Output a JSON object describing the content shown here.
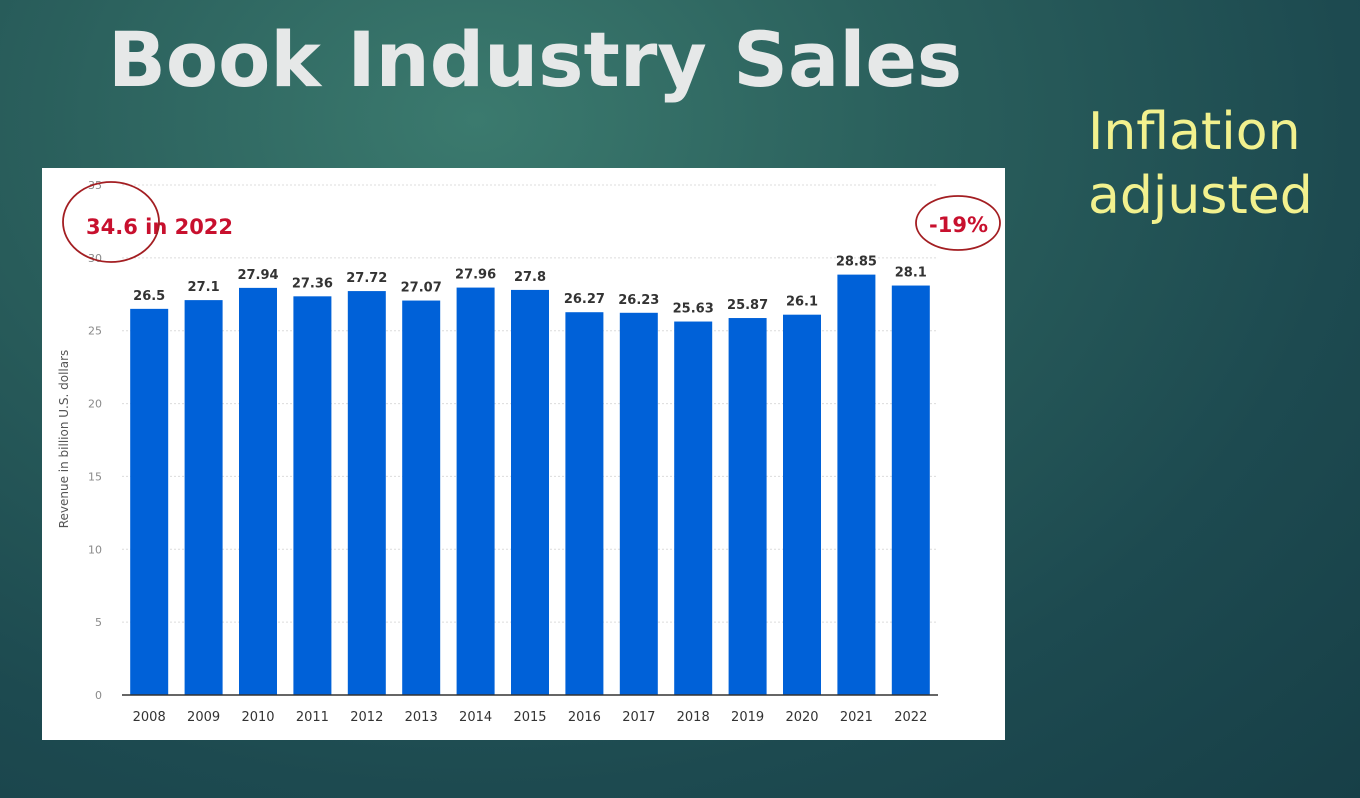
{
  "slide": {
    "title": "Book Industry Sales",
    "note_line1": "Inflation",
    "note_line2": "adjusted"
  },
  "colors": {
    "bar": "#0061d8",
    "annotation": "#c8102e",
    "note_text": "#f2f18e",
    "title_text": "#e6e8e8"
  },
  "annotations": {
    "left": "34.6 in 2022",
    "right": "-19%"
  },
  "chart_data": {
    "type": "bar",
    "categories": [
      "2008",
      "2009",
      "2010",
      "2011",
      "2012",
      "2013",
      "2014",
      "2015",
      "2016",
      "2017",
      "2018",
      "2019",
      "2020",
      "2021",
      "2022"
    ],
    "values": [
      26.5,
      27.1,
      27.94,
      27.36,
      27.72,
      27.07,
      27.96,
      27.8,
      26.27,
      26.23,
      25.63,
      25.87,
      26.1,
      28.85,
      28.1
    ],
    "value_labels": [
      "26.5",
      "27.1",
      "27.94",
      "27.36",
      "27.72",
      "27.07",
      "27.96",
      "27.8",
      "26.27",
      "26.23",
      "25.63",
      "25.87",
      "26.1",
      "28.85",
      "28.1"
    ],
    "title": "",
    "xlabel": "",
    "ylabel": "Revenue in billion U.S. dollars",
    "ylim": [
      0,
      35
    ],
    "yticks": [
      0,
      5,
      10,
      15,
      20,
      25,
      30,
      35
    ],
    "grid": true,
    "legend": "none"
  }
}
